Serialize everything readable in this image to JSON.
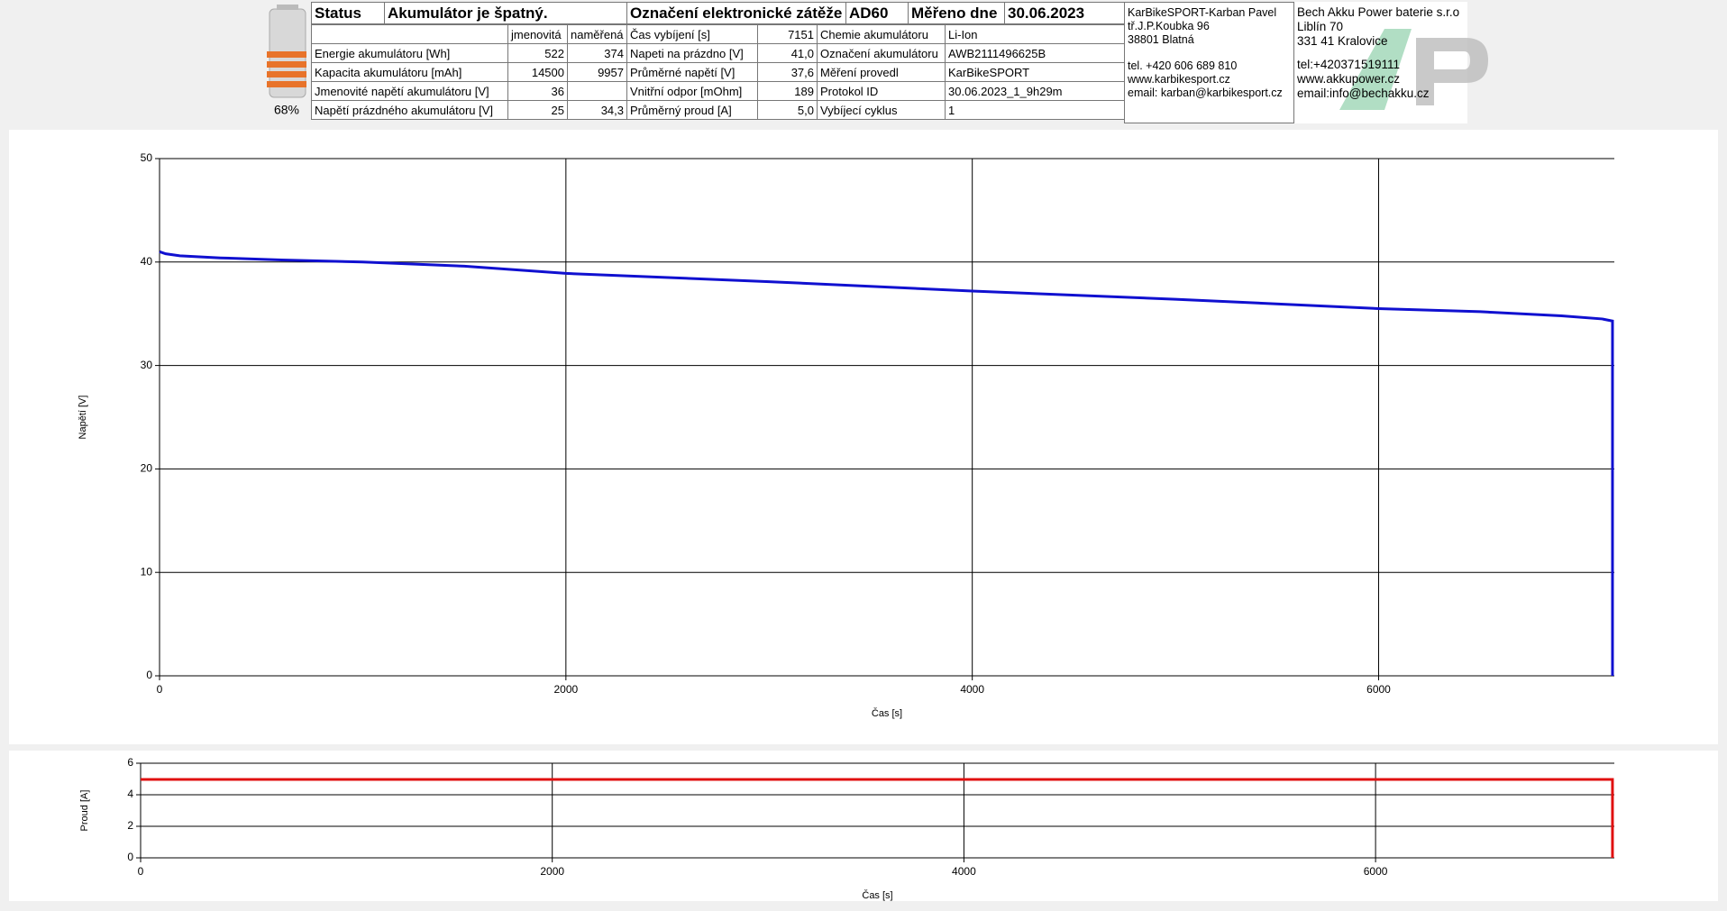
{
  "battery": {
    "level": "68%"
  },
  "table": {
    "status_row": [
      "Status",
      "Akumulátor je špatný.",
      "Označení elektronické zátěže",
      "AD60",
      "Měřeno dne",
      "30.06.2023"
    ],
    "columns": [
      "jmenovitá",
      "naměřená"
    ],
    "first_right": [
      "Čas vybíjení [s]",
      "7151",
      "Chemie akumulátoru",
      "Li-Ion"
    ],
    "rows": [
      {
        "label": "Energie akumulátoru [Wh]",
        "nominal": "522",
        "measured": "374",
        "label2": "Napeti na prázdno [V]",
        "value2": "41,0",
        "label3": "Označení akumulátoru",
        "value3": "AWB2111496625B"
      },
      {
        "label": "Kapacita akumulátoru [mAh]",
        "nominal": "14500",
        "measured": "9957",
        "label2": "Průměrné napětí [V]",
        "value2": "37,6",
        "label3": "Měření provedl",
        "value3": "KarBikeSPORT"
      },
      {
        "label": "Jmenovité napětí akumulátoru [V]",
        "nominal": "36",
        "label2": "Vnitřní odpor [mOhm]",
        "value2": "189",
        "label3": "Protokol ID",
        "value3": "30.06.2023_1_9h29m"
      },
      {
        "label": "Napětí prázdného akumulátoru [V]",
        "nominal": "25",
        "measured": "34,3",
        "label2": "Průměrný proud [A]",
        "value2": "5,0",
        "label3": "Vybíjecí cyklus",
        "value3": "1"
      }
    ]
  },
  "company1": [
    "KarBikeSPORT-Karban Pavel",
    "tř.J.P.Koubka 96",
    "38801 Blatná",
    "tel. +420 606 689 810",
    "www.karbikesport.cz",
    "email: karban@karbikesport.cz"
  ],
  "company2": [
    "Bech Akku Power baterie s.r.o",
    "Liblín 70",
    "331 41 Kralovice",
    "tel:+420371519111",
    "www.akkupower.cz",
    "email:info@bechakku.cz"
  ],
  "chart_data": [
    {
      "type": "line",
      "xlabel": "Čas [s]",
      "ylabel": "Napětí [V]",
      "xlim": [
        0,
        7160
      ],
      "xticks": [
        0,
        2000,
        4000,
        6000
      ],
      "ylim": [
        0,
        50
      ],
      "yticks": [
        0,
        10,
        20,
        30,
        40,
        50
      ],
      "grid": true,
      "series": [
        {
          "name": "Napětí",
          "color": "#1010d0",
          "x": [
            0,
            30,
            100,
            300,
            600,
            1000,
            1500,
            2000,
            3000,
            4000,
            5000,
            6000,
            6500,
            6900,
            7100,
            7151,
            7151
          ],
          "values": [
            41.0,
            40.8,
            40.6,
            40.4,
            40.2,
            40.0,
            39.6,
            38.9,
            38.1,
            37.2,
            36.4,
            35.5,
            35.2,
            34.8,
            34.5,
            34.3,
            0
          ]
        }
      ]
    },
    {
      "type": "line",
      "xlabel": "Čas [s]",
      "ylabel": "Proud [A]",
      "xlim": [
        0,
        7160
      ],
      "xticks": [
        0,
        2000,
        4000,
        6000
      ],
      "ylim": [
        0,
        6
      ],
      "yticks": [
        0,
        2,
        4,
        6
      ],
      "grid": true,
      "series": [
        {
          "name": "Proud",
          "color": "#e01010",
          "x": [
            0,
            100,
            7151,
            7151
          ],
          "values": [
            4.97,
            4.97,
            4.97,
            0
          ]
        }
      ]
    }
  ]
}
